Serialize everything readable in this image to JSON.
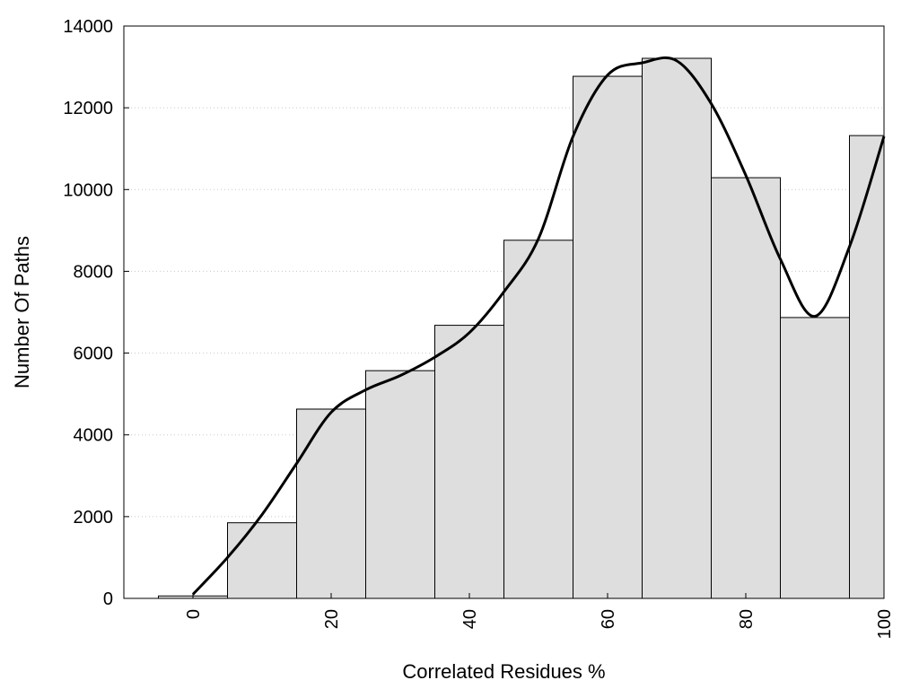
{
  "chart_data": {
    "type": "bar",
    "title": "",
    "xlabel": "Correlated Residues %",
    "ylabel": "Number Of Paths",
    "xlim": [
      -10,
      100
    ],
    "ylim": [
      0,
      14000
    ],
    "x_ticks": [
      0,
      20,
      40,
      60,
      80,
      100
    ],
    "y_ticks": [
      0,
      2000,
      4000,
      6000,
      8000,
      10000,
      12000,
      14000
    ],
    "grid": "horizontal-dotted",
    "bar_color": "#dedede",
    "edge_color": "#000000",
    "bars": [
      {
        "x": 0,
        "value": 60
      },
      {
        "x": 10,
        "value": 1850
      },
      {
        "x": 20,
        "value": 4630
      },
      {
        "x": 30,
        "value": 5570
      },
      {
        "x": 40,
        "value": 6680
      },
      {
        "x": 50,
        "value": 8760
      },
      {
        "x": 60,
        "value": 12770
      },
      {
        "x": 70,
        "value": 13210
      },
      {
        "x": 80,
        "value": 10290
      },
      {
        "x": 90,
        "value": 6870
      },
      {
        "x": 100,
        "value": 11320
      }
    ],
    "curve": {
      "color": "#000000",
      "points": [
        [
          0,
          100
        ],
        [
          5,
          1000
        ],
        [
          10,
          2050
        ],
        [
          15,
          3300
        ],
        [
          20,
          4550
        ],
        [
          25,
          5100
        ],
        [
          30,
          5450
        ],
        [
          35,
          5900
        ],
        [
          40,
          6500
        ],
        [
          45,
          7500
        ],
        [
          50,
          8800
        ],
        [
          55,
          11300
        ],
        [
          60,
          12800
        ],
        [
          65,
          13100
        ],
        [
          70,
          13150
        ],
        [
          75,
          12100
        ],
        [
          80,
          10350
        ],
        [
          85,
          8300
        ],
        [
          90,
          6900
        ],
        [
          95,
          8600
        ],
        [
          100,
          11300
        ]
      ]
    }
  }
}
